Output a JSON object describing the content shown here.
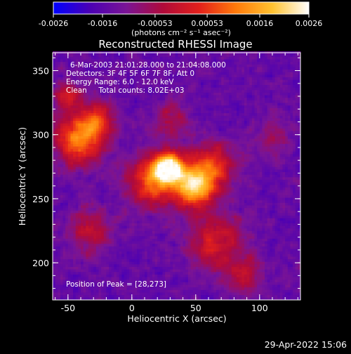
{
  "chart_data": {
    "type": "heatmap",
    "title": "Reconstructed RHESSI Image",
    "xlabel": "Heliocentric X (arcsec)",
    "ylabel": "Heliocentric Y (arcsec)",
    "xlim": [
      -62,
      132
    ],
    "ylim": [
      171,
      364
    ],
    "x_ticks": [
      -50,
      0,
      50,
      100
    ],
    "y_ticks": [
      200,
      250,
      300,
      350
    ],
    "grid": false,
    "colorbar": {
      "min": -0.0026,
      "max": 0.0026,
      "ticks": [
        "-0.0026",
        "-0.0016",
        "-0.00053",
        "0.00053",
        "0.0016",
        "0.0026"
      ],
      "tick_values": [
        -0.0026,
        -0.0016,
        -0.00053,
        0.00053,
        0.0016,
        0.0026
      ],
      "units": "(photons cm⁻² s⁻¹ asec⁻²)",
      "colormap": [
        "#0000ff",
        "#4b00b4",
        "#7a1495",
        "#b00a3a",
        "#e3201b",
        "#ff7a0a",
        "#ffc230",
        "#ffffff"
      ]
    },
    "annotations": [
      "6-Mar-2003 21:01:28.000 to 21:04:08.000",
      "Detectors: 3F 4F 5F 6F 7F 8F, Att 0",
      "Energy Range: 6.0 - 12.0 keV",
      "Clean     Total counts: 8.02E+03"
    ],
    "peak_label": "Position of Peak = [28,273]",
    "peak": [
      28,
      273
    ],
    "sources": [
      {
        "x": 28,
        "y": 273,
        "sigma": 8,
        "amp": 1.0
      },
      {
        "x": 48,
        "y": 258,
        "sigma": 11,
        "amp": 0.8
      },
      {
        "x": 15,
        "y": 262,
        "sigma": 14,
        "amp": 0.55
      },
      {
        "x": 62,
        "y": 275,
        "sigma": 13,
        "amp": 0.45
      },
      {
        "x": -42,
        "y": 295,
        "sigma": 13,
        "amp": 0.65
      },
      {
        "x": -28,
        "y": 310,
        "sigma": 9,
        "amp": 0.45
      },
      {
        "x": -50,
        "y": 330,
        "sigma": 8,
        "amp": 0.35
      },
      {
        "x": 65,
        "y": 215,
        "sigma": 15,
        "amp": 0.4
      },
      {
        "x": 88,
        "y": 190,
        "sigma": 10,
        "amp": 0.3
      },
      {
        "x": -35,
        "y": 225,
        "sigma": 12,
        "amp": 0.3
      },
      {
        "x": 30,
        "y": 310,
        "sigma": 10,
        "amp": 0.25
      },
      {
        "x": 110,
        "y": 295,
        "sigma": 10,
        "amp": 0.2
      }
    ]
  },
  "timestamp": "29-Apr-2022 15:06"
}
